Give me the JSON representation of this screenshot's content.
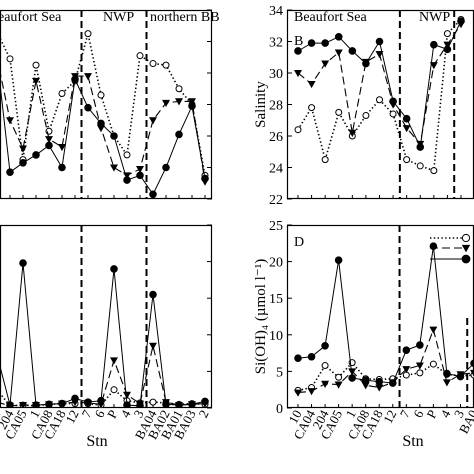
{
  "chart_data": [
    {
      "panel": "top-left",
      "type": "line",
      "region_labels": [
        "eaufort Sea",
        "NWP",
        "northern BB"
      ],
      "categories": [
        "CA04",
        "204",
        "CA05",
        "1",
        "CA08",
        "CA18",
        "12",
        "7",
        "6",
        "P",
        "4",
        "3",
        "BA04",
        "BA02",
        "BA01",
        "BA03",
        "2"
      ],
      "series": [
        {
          "style": "dotted-open-circle",
          "values": [
            32.6,
            30.9,
            24.5,
            30.5,
            26.3,
            28.7,
            29.5,
            32.5,
            28.6,
            26.0,
            24.8,
            31.1,
            30.6,
            30.5,
            29.0,
            28.0,
            23.5
          ]
        },
        {
          "style": "dashed-triangle",
          "values": [
            31.0,
            27.0,
            25.2,
            29.5,
            25.8,
            25.3,
            29.8,
            29.8,
            26.5,
            24.0,
            23.5,
            23.9,
            27.0,
            28.1,
            28.2,
            28.2,
            23.1
          ]
        },
        {
          "style": "solid-filled-circle",
          "values": [
            31.0,
            23.7,
            24.3,
            24.8,
            25.4,
            24.0,
            29.6,
            27.8,
            26.8,
            26.0,
            23.2,
            23.5,
            22.3,
            24.0,
            26.1,
            27.9,
            23.3
          ]
        }
      ]
    },
    {
      "panel": "top-right",
      "type": "line",
      "panel_label": "B",
      "ylabel": "Salinity",
      "ylim": [
        22,
        34
      ],
      "yticks": [
        22,
        24,
        26,
        28,
        30,
        32,
        34
      ],
      "region_labels": [
        "Beaufort Sea",
        "NWP"
      ],
      "categories": [
        "10",
        "CA04",
        "204",
        "CA05",
        "1",
        "CA08",
        "CA18",
        "12",
        "7",
        "6",
        "P",
        "4",
        "3"
      ],
      "series": [
        {
          "style": "dotted-open-circle",
          "values": [
            26.4,
            27.8,
            24.5,
            27.5,
            26.0,
            27.3,
            28.3,
            27.4,
            24.5,
            24.1,
            23.8,
            32.5,
            33.4
          ]
        },
        {
          "style": "dashed-triangle",
          "values": [
            30.0,
            29.3,
            30.6,
            31.3,
            26.2,
            30.7,
            31.2,
            28.0,
            26.5,
            25.5,
            30.5,
            31.8,
            33.1
          ]
        },
        {
          "style": "solid-filled-circle",
          "values": [
            31.4,
            31.9,
            31.9,
            32.3,
            31.4,
            30.6,
            32.0,
            28.2,
            27.1,
            25.3,
            31.8,
            31.5,
            33.3
          ]
        }
      ]
    },
    {
      "panel": "bottom-left",
      "type": "line",
      "xlabel": "Stn",
      "xtick_labels": [
        "CA04",
        "204",
        "CA05",
        "1",
        "CA08",
        "CA18",
        "12",
        "7",
        "6",
        "P",
        "4",
        "3",
        "BA04",
        "BA02",
        "BA01",
        "BA03",
        "2"
      ],
      "series": [
        {
          "style": "dotted-open-circle",
          "values": [
            2.5,
            0.3,
            0.4,
            0.3,
            0.5,
            0.6,
            0.6,
            0.6,
            0.4,
            2.5,
            1.0,
            0.7,
            0.8,
            0.7,
            0.5,
            0.6,
            0.5
          ]
        },
        {
          "style": "dashed-triangle",
          "values": [
            0.8,
            0.3,
            0.4,
            0.4,
            0.5,
            0.6,
            0.8,
            0.7,
            0.5,
            6.5,
            1.8,
            0.6,
            8.5,
            0.8,
            0.4,
            0.5,
            0.6
          ]
        },
        {
          "style": "solid-filled-circle",
          "values": [
            7.3,
            0.4,
            19.8,
            0.4,
            0.5,
            0.6,
            1.3,
            0.8,
            1.0,
            19.0,
            0.4,
            0.3,
            15.5,
            0.5,
            0.4,
            0.5,
            0.9
          ]
        }
      ]
    },
    {
      "panel": "bottom-right",
      "type": "line",
      "panel_label": "D",
      "xlabel": "Stn",
      "ylabel": "Si(OH)₄ (µmol l⁻¹)",
      "ylim": [
        0,
        25
      ],
      "yticks": [
        0,
        5,
        10,
        15,
        20,
        25
      ],
      "xtick_labels": [
        "10",
        "CA04",
        "204",
        "CA05",
        "1",
        "CA08",
        "CA18",
        "12",
        "7",
        "6",
        "P",
        "4",
        "3",
        "BA0"
      ],
      "series": [
        {
          "style": "dotted-open-circle",
          "values": [
            2.4,
            2.8,
            5.8,
            4.2,
            6.2,
            4.0,
            3.9,
            4.0,
            4.5,
            4.8,
            6.0,
            4.6,
            4.4,
            4.5
          ]
        },
        {
          "style": "dashed-triangle",
          "values": [
            2.1,
            2.3,
            3.3,
            3.2,
            5.0,
            3.1,
            2.8,
            3.5,
            5.3,
            5.8,
            10.7,
            3.5,
            4.6,
            4.8
          ]
        },
        {
          "style": "solid-filled-circle",
          "values": [
            6.8,
            7.0,
            8.5,
            20.2,
            4.1,
            3.8,
            3.6,
            3.4,
            7.9,
            8.6,
            22.1,
            4.7,
            4.3,
            6.1
          ]
        }
      ]
    }
  ]
}
